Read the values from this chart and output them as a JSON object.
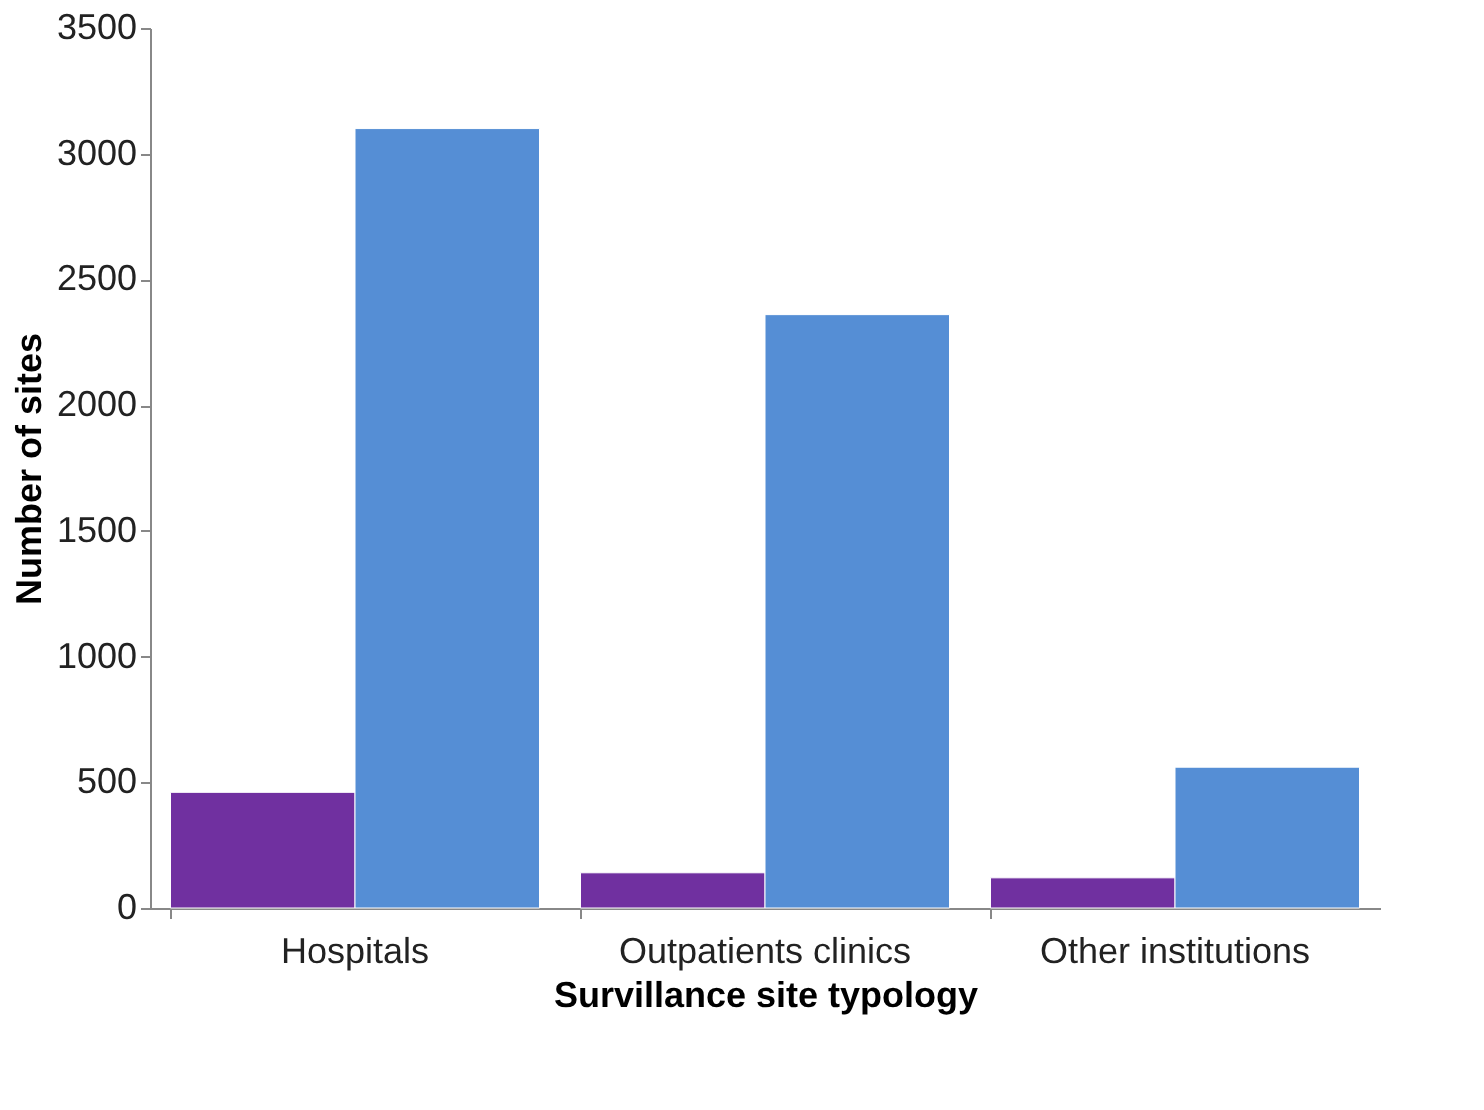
{
  "chart_data": {
    "type": "bar",
    "xlabel": "Survillance site typology",
    "ylabel": "Number of sites",
    "categories": [
      "Hospitals",
      "Outpatients clinics",
      "Other institutions"
    ],
    "series": [
      {
        "color": "#7030a0",
        "values": [
          460,
          140,
          120
        ]
      },
      {
        "color": "#558ed5",
        "values": [
          3100,
          2360,
          560
        ]
      }
    ],
    "ylim": [
      0,
      3500
    ],
    "yticks": [
      0,
      500,
      1000,
      1500,
      2000,
      2500,
      3000,
      3500
    ],
    "grid": false
  }
}
